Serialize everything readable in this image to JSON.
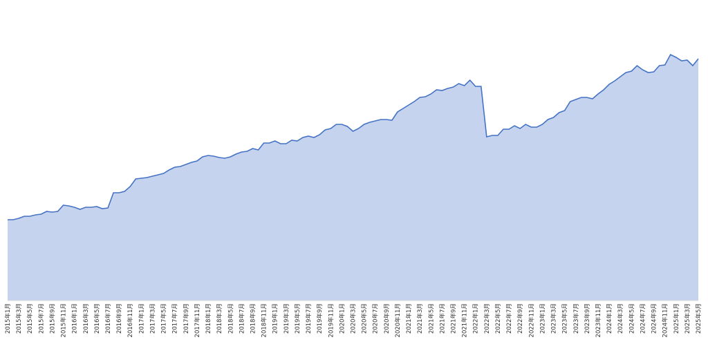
{
  "chart_data": {
    "type": "area",
    "categories": [
      "2015年1月",
      null,
      "2015年3月",
      null,
      "2015年5月",
      null,
      "2015年7月",
      null,
      "2015年9月",
      null,
      "2015年11月",
      null,
      "2016年1月",
      null,
      "2016年3月",
      null,
      "2016年5月",
      null,
      "2016年7月",
      null,
      "2016年9月",
      null,
      "2016年11月",
      null,
      "2017年1月",
      null,
      "2017年3月",
      null,
      "2017年5月",
      null,
      "2017年7月",
      null,
      "2017年9月",
      null,
      "2017年11月",
      null,
      "2018年1月",
      null,
      "2018年3月",
      null,
      "2018年5月",
      null,
      "2018年7月",
      null,
      "2018年9月",
      null,
      "2018年11月",
      null,
      "2019年1月",
      null,
      "2019年3月",
      null,
      "2019年5月",
      null,
      "2019年7月",
      null,
      "2019年9月",
      null,
      "2019年11月",
      null,
      "2020年1月",
      null,
      "2020年3月",
      null,
      "2020年5月",
      null,
      "2020年7月",
      null,
      "2020年9月",
      null,
      "2020年11月",
      null,
      "2021年1月",
      null,
      "2021年3月",
      null,
      "2021年5月",
      null,
      "2021年7月",
      null,
      "2021年9月",
      null,
      "2021年11月",
      null,
      "2022年1月",
      null,
      "2022年3月",
      null,
      "2022年5月",
      null,
      "2022年7月",
      null,
      "2022年9月",
      null,
      "2022年11月",
      null,
      "2023年1月",
      null,
      "2023年3月",
      null,
      "2023年5月",
      null,
      "2023年7月",
      null,
      "2023年9月",
      null,
      "2023年11月",
      null,
      "2024年1月",
      null,
      "2024年3月",
      null,
      "2024年5月",
      null,
      "2024年7月",
      null,
      "2024年9月",
      null,
      "2024年11月",
      null,
      "2025年1月",
      null,
      "2025年3月",
      null,
      "2025年5月"
    ],
    "values": [
      29.25,
      29.25,
      29.75,
      30.5,
      30.5,
      31,
      31.25,
      32.25,
      32,
      32.25,
      34.5,
      34.25,
      33.75,
      33,
      33.75,
      33.75,
      34,
      33.25,
      33.5,
      39,
      39,
      39.5,
      41.25,
      44,
      44.25,
      44.5,
      45,
      45.5,
      46,
      47.25,
      48.25,
      48.5,
      49.25,
      50,
      50.5,
      52,
      52.5,
      52.25,
      51.75,
      51.5,
      52,
      53,
      53.75,
      54,
      55,
      54.5,
      57,
      57,
      57.75,
      56.75,
      56.75,
      58,
      57.75,
      59,
      59.5,
      59,
      60,
      61.75,
      62.25,
      63.75,
      63.75,
      63,
      61.25,
      62.25,
      63.75,
      64.5,
      65,
      65.5,
      65.5,
      65.25,
      68.25,
      69.5,
      70.75,
      72,
      73.5,
      73.75,
      74.75,
      76.25,
      76,
      76.75,
      77.25,
      78.5,
      77.75,
      79.75,
      77.5,
      77.5,
      59.25,
      59.75,
      59.75,
      62,
      62,
      63.25,
      62.25,
      63.75,
      62.75,
      62.75,
      63.75,
      65.5,
      66.25,
      68,
      68.75,
      72,
      72.75,
      73.5,
      73.5,
      73,
      74.75,
      76.25,
      78.25,
      79.5,
      81,
      82.5,
      83,
      85,
      83.5,
      82.5,
      82.75,
      85,
      85.25,
      89,
      88,
      86.75,
      87,
      85,
      87.5
    ],
    "color": "#4472c4",
    "fill": "#c5d3ee",
    "ylim": [
      0,
      100
    ]
  }
}
